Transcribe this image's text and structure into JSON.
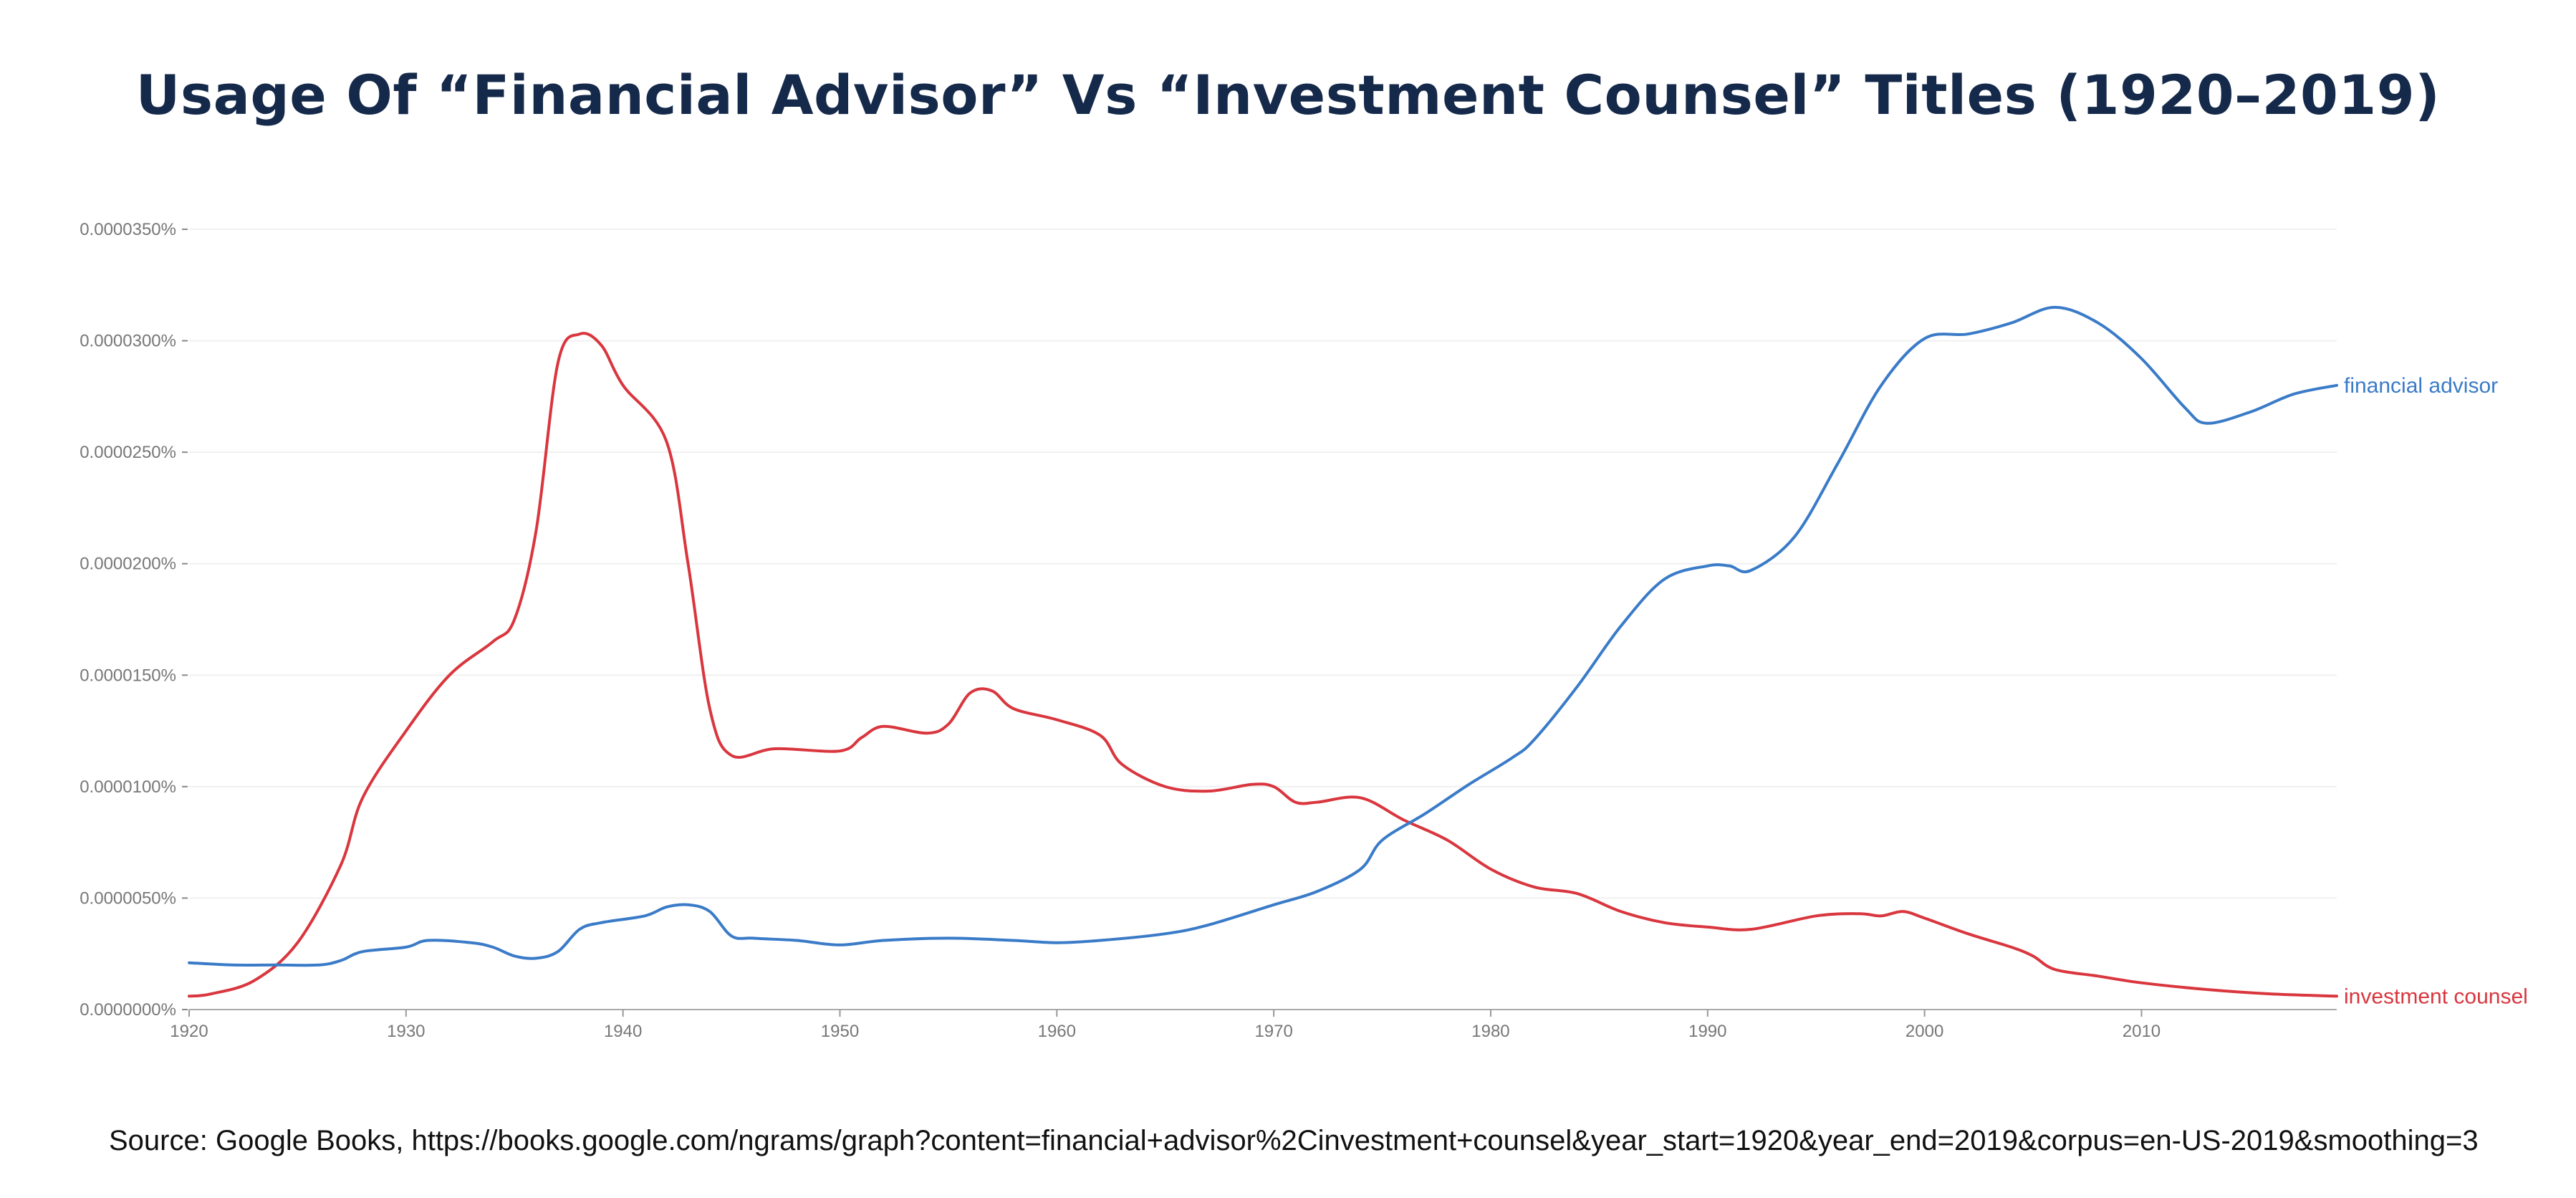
{
  "chart_data": {
    "type": "line",
    "title": "Usage Of “Financial Advisor” Vs “Investment Counsel” Titles (1920–2019)",
    "source": "Source: Google Books, https://books.google.com/ngrams/graph?content=financial+advisor%2Cinvestment+counsel&year_start=1920&year_end=2019&corpus=en-US-2019&smoothing=3",
    "xlim": [
      1920,
      2019
    ],
    "ylim": [
      0,
      3.5e-05
    ],
    "x_ticks": [
      "1920",
      "1930",
      "1940",
      "1950",
      "1960",
      "1970",
      "1980",
      "1990",
      "2000",
      "2010"
    ],
    "y_ticks": [
      "0.0000000%",
      "0.0000050%",
      "0.0000100%",
      "0.0000150%",
      "0.0000200%",
      "0.0000250%",
      "0.0000300%",
      "0.0000350%"
    ],
    "legend": "inline-right",
    "grid": true,
    "series": [
      {
        "name": "financial advisor",
        "color": "#3a7bc8",
        "points": [
          [
            1920,
            2.1e-06
          ],
          [
            1922,
            2e-06
          ],
          [
            1924,
            2e-06
          ],
          [
            1926,
            2e-06
          ],
          [
            1927,
            2.2e-06
          ],
          [
            1928,
            2.6e-06
          ],
          [
            1930,
            2.8e-06
          ],
          [
            1931,
            3.1e-06
          ],
          [
            1933,
            3e-06
          ],
          [
            1934,
            2.8e-06
          ],
          [
            1935,
            2.4e-06
          ],
          [
            1936,
            2.3e-06
          ],
          [
            1937,
            2.6e-06
          ],
          [
            1938,
            3.6e-06
          ],
          [
            1939,
            3.9e-06
          ],
          [
            1941,
            4.2e-06
          ],
          [
            1942,
            4.6e-06
          ],
          [
            1943,
            4.7e-06
          ],
          [
            1944,
            4.4e-06
          ],
          [
            1945,
            3.3e-06
          ],
          [
            1946,
            3.2e-06
          ],
          [
            1948,
            3.1e-06
          ],
          [
            1950,
            2.9e-06
          ],
          [
            1952,
            3.1e-06
          ],
          [
            1955,
            3.2e-06
          ],
          [
            1958,
            3.1e-06
          ],
          [
            1960,
            3e-06
          ],
          [
            1962,
            3.1e-06
          ],
          [
            1965,
            3.4e-06
          ],
          [
            1967,
            3.8e-06
          ],
          [
            1970,
            4.7e-06
          ],
          [
            1972,
            5.3e-06
          ],
          [
            1974,
            6.3e-06
          ],
          [
            1975,
            7.6e-06
          ],
          [
            1977,
            8.8e-06
          ],
          [
            1979,
            1.01e-05
          ],
          [
            1981,
            1.13e-05
          ],
          [
            1982,
            1.21e-05
          ],
          [
            1984,
            1.45e-05
          ],
          [
            1986,
            1.72e-05
          ],
          [
            1988,
            1.93e-05
          ],
          [
            1990,
            1.99e-05
          ],
          [
            1991,
            1.99e-05
          ],
          [
            1992,
            1.97e-05
          ],
          [
            1994,
            2.12e-05
          ],
          [
            1996,
            2.45e-05
          ],
          [
            1998,
            2.8e-05
          ],
          [
            2000,
            3.01e-05
          ],
          [
            2002,
            3.03e-05
          ],
          [
            2004,
            3.08e-05
          ],
          [
            2006,
            3.15e-05
          ],
          [
            2008,
            3.08e-05
          ],
          [
            2010,
            2.92e-05
          ],
          [
            2012,
            2.7e-05
          ],
          [
            2013,
            2.63e-05
          ],
          [
            2015,
            2.68e-05
          ],
          [
            2017,
            2.76e-05
          ],
          [
            2019,
            2.8e-05
          ]
        ]
      },
      {
        "name": "investment counsel",
        "color": "#d9363e",
        "points": [
          [
            1920,
            6e-07
          ],
          [
            1921,
            7e-07
          ],
          [
            1923,
            1.3e-06
          ],
          [
            1925,
            3e-06
          ],
          [
            1927,
            6.5e-06
          ],
          [
            1928,
            9.5e-06
          ],
          [
            1930,
            1.25e-05
          ],
          [
            1932,
            1.5e-05
          ],
          [
            1934,
            1.65e-05
          ],
          [
            1935,
            1.75e-05
          ],
          [
            1936,
            2.15e-05
          ],
          [
            1937,
            2.9e-05
          ],
          [
            1938,
            3.03e-05
          ],
          [
            1939,
            2.98e-05
          ],
          [
            1940,
            2.8e-05
          ],
          [
            1942,
            2.55e-05
          ],
          [
            1943,
            2e-05
          ],
          [
            1944,
            1.35e-05
          ],
          [
            1945,
            1.14e-05
          ],
          [
            1947,
            1.17e-05
          ],
          [
            1950,
            1.16e-05
          ],
          [
            1951,
            1.22e-05
          ],
          [
            1952,
            1.27e-05
          ],
          [
            1954,
            1.24e-05
          ],
          [
            1955,
            1.28e-05
          ],
          [
            1956,
            1.42e-05
          ],
          [
            1957,
            1.43e-05
          ],
          [
            1958,
            1.35e-05
          ],
          [
            1960,
            1.3e-05
          ],
          [
            1962,
            1.23e-05
          ],
          [
            1963,
            1.1e-05
          ],
          [
            1965,
            1e-05
          ],
          [
            1967,
            9.8e-06
          ],
          [
            1969,
            1.01e-05
          ],
          [
            1970,
            1e-05
          ],
          [
            1971,
            9.3e-06
          ],
          [
            1972,
            9.3e-06
          ],
          [
            1974,
            9.5e-06
          ],
          [
            1976,
            8.5e-06
          ],
          [
            1978,
            7.6e-06
          ],
          [
            1980,
            6.3e-06
          ],
          [
            1982,
            5.5e-06
          ],
          [
            1984,
            5.2e-06
          ],
          [
            1986,
            4.4e-06
          ],
          [
            1988,
            3.9e-06
          ],
          [
            1990,
            3.7e-06
          ],
          [
            1992,
            3.6e-06
          ],
          [
            1995,
            4.2e-06
          ],
          [
            1997,
            4.3e-06
          ],
          [
            1998,
            4.2e-06
          ],
          [
            1999,
            4.4e-06
          ],
          [
            2000,
            4.1e-06
          ],
          [
            2002,
            3.4e-06
          ],
          [
            2004,
            2.8e-06
          ],
          [
            2005,
            2.4e-06
          ],
          [
            2006,
            1.8e-06
          ],
          [
            2008,
            1.5e-06
          ],
          [
            2010,
            1.2e-06
          ],
          [
            2013,
            9e-07
          ],
          [
            2016,
            7e-07
          ],
          [
            2019,
            6e-07
          ]
        ]
      }
    ]
  }
}
